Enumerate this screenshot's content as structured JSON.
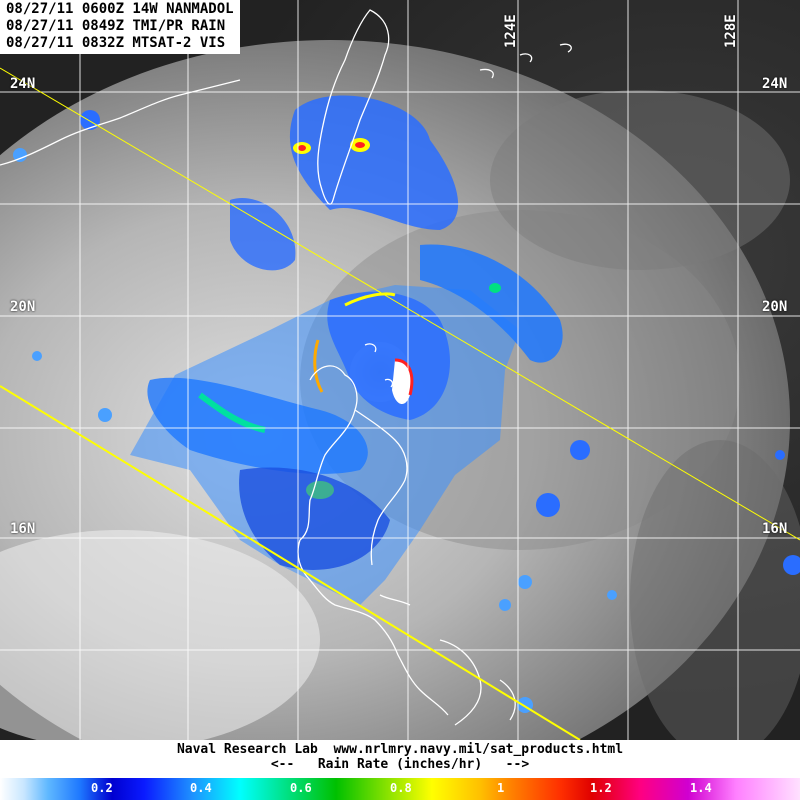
{
  "header": {
    "line1": "08/27/11 0600Z 14W NANMADOL",
    "line2": "08/27/11 0849Z TMI/PR RAIN",
    "line3": "08/27/11 0832Z MTSAT-2 VIS"
  },
  "grid": {
    "lat_labels": [
      {
        "text": "24N",
        "id": "24n"
      },
      {
        "text": "20N",
        "id": "20n"
      },
      {
        "text": "16N",
        "id": "16n"
      }
    ],
    "lon_labels": [
      {
        "text": "124E",
        "id": "124e"
      },
      {
        "text": "128E",
        "id": "128e"
      }
    ]
  },
  "footer": {
    "credit": "Naval Research Lab  www.nrlmry.navy.mil/sat_products.html",
    "legend_title": "<--   Rain Rate (inches/hr)   -->"
  },
  "colorbar": {
    "ticks": [
      "0.2",
      "0.4",
      "0.6",
      "0.8",
      "1",
      "1.2",
      "1.4"
    ]
  },
  "colors": {
    "swath_line": "#ffff00",
    "grid_line": "#ffffff",
    "coastline": "#ffffff"
  }
}
